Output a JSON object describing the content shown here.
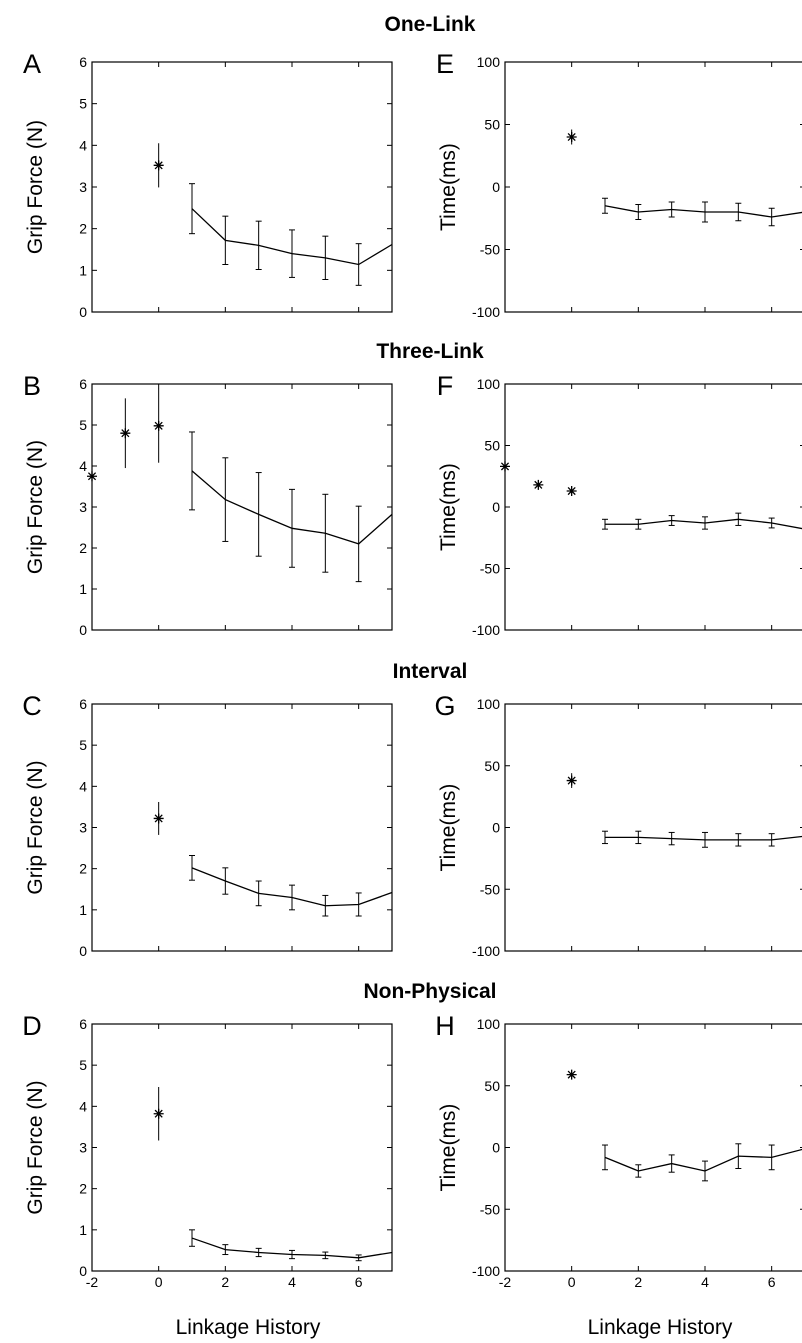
{
  "row_titles": [
    "One-Link",
    "Three-Link",
    "Interval",
    "Non-Physical"
  ],
  "x_axis_label": "Linkage History",
  "chart_data": [
    {
      "panel": "A",
      "type": "line",
      "ylabel": "Grip Force (N)",
      "xlim": [
        -2,
        7
      ],
      "ylim": [
        0,
        6
      ],
      "yticks": [
        0,
        1,
        2,
        3,
        4,
        5,
        6
      ],
      "xticks": [
        -2,
        0,
        2,
        4,
        6
      ],
      "show_xticklabels": false,
      "markers": [
        {
          "x": 0,
          "y": 3.52,
          "err": 0.53
        }
      ],
      "line": {
        "x": [
          1,
          2,
          3,
          4,
          5,
          6,
          7
        ],
        "y": [
          2.48,
          1.72,
          1.6,
          1.4,
          1.3,
          1.14,
          1.62
        ],
        "err": [
          0.6,
          0.58,
          0.58,
          0.57,
          0.52,
          0.5,
          null
        ]
      }
    },
    {
      "panel": "E",
      "type": "line",
      "ylabel": "Time(ms)",
      "xlim": [
        -2,
        7
      ],
      "ylim": [
        -100,
        100
      ],
      "yticks": [
        -100,
        -50,
        0,
        50,
        100
      ],
      "xticks": [
        -2,
        0,
        2,
        4,
        6
      ],
      "show_xticklabels": false,
      "markers": [
        {
          "x": 0,
          "y": 40,
          "err": 6
        }
      ],
      "line": {
        "x": [
          1,
          2,
          3,
          4,
          5,
          6,
          7
        ],
        "y": [
          -15,
          -20,
          -18,
          -20,
          -20,
          -24,
          -20
        ],
        "err": [
          6,
          6,
          6,
          8,
          7,
          7,
          null
        ]
      }
    },
    {
      "panel": "B",
      "type": "line",
      "ylabel": "Grip Force (N)",
      "xlim": [
        -2,
        7
      ],
      "ylim": [
        0,
        6
      ],
      "yticks": [
        0,
        1,
        2,
        3,
        4,
        5,
        6
      ],
      "xticks": [
        -2,
        0,
        2,
        4,
        6
      ],
      "show_xticklabels": false,
      "markers": [
        {
          "x": -2,
          "y": 3.75,
          "err": 0
        },
        {
          "x": -1,
          "y": 4.8,
          "err": 0.85
        },
        {
          "x": 0,
          "y": 4.98,
          "err": 0.9
        }
      ],
      "line": {
        "x": [
          1,
          2,
          3,
          4,
          5,
          6,
          7
        ],
        "y": [
          3.88,
          3.18,
          2.82,
          2.48,
          2.36,
          2.1,
          2.82
        ],
        "err": [
          0.95,
          1.02,
          1.02,
          0.95,
          0.95,
          0.92,
          null
        ]
      }
    },
    {
      "panel": "F",
      "type": "line",
      "ylabel": "Time(ms)",
      "xlim": [
        -2,
        7
      ],
      "ylim": [
        -100,
        100
      ],
      "yticks": [
        -100,
        -50,
        0,
        50,
        100
      ],
      "xticks": [
        -2,
        0,
        2,
        4,
        6
      ],
      "show_xticklabels": false,
      "markers": [
        {
          "x": -2,
          "y": 33,
          "err": 0
        },
        {
          "x": -1,
          "y": 18,
          "err": 0
        },
        {
          "x": 0,
          "y": 13,
          "err": 0
        }
      ],
      "line": {
        "x": [
          1,
          2,
          3,
          4,
          5,
          6,
          7
        ],
        "y": [
          -14,
          -14,
          -11,
          -13,
          -10,
          -13,
          -18
        ],
        "err": [
          4,
          4,
          4,
          5,
          5,
          4,
          null
        ]
      }
    },
    {
      "panel": "C",
      "type": "line",
      "ylabel": "Grip Force (N)",
      "xlim": [
        -2,
        7
      ],
      "ylim": [
        0,
        6
      ],
      "yticks": [
        0,
        1,
        2,
        3,
        4,
        5,
        6
      ],
      "xticks": [
        -2,
        0,
        2,
        4,
        6
      ],
      "show_xticklabels": false,
      "markers": [
        {
          "x": 0,
          "y": 3.22,
          "err": 0.4
        }
      ],
      "line": {
        "x": [
          1,
          2,
          3,
          4,
          5,
          6,
          7
        ],
        "y": [
          2.02,
          1.7,
          1.4,
          1.3,
          1.1,
          1.13,
          1.42
        ],
        "err": [
          0.3,
          0.32,
          0.3,
          0.3,
          0.25,
          0.28,
          null
        ]
      }
    },
    {
      "panel": "G",
      "type": "line",
      "ylabel": "Time(ms)",
      "xlim": [
        -2,
        7
      ],
      "ylim": [
        -100,
        100
      ],
      "yticks": [
        -100,
        -50,
        0,
        50,
        100
      ],
      "xticks": [
        -2,
        0,
        2,
        4,
        6
      ],
      "show_xticklabels": false,
      "markers": [
        {
          "x": 0,
          "y": 38,
          "err": 6
        }
      ],
      "line": {
        "x": [
          1,
          2,
          3,
          4,
          5,
          6,
          7
        ],
        "y": [
          -8,
          -8,
          -9,
          -10,
          -10,
          -10,
          -7
        ],
        "err": [
          5,
          5,
          5,
          6,
          5,
          5,
          null
        ]
      }
    },
    {
      "panel": "D",
      "type": "line",
      "ylabel": "Grip Force (N)",
      "xlim": [
        -2,
        7
      ],
      "ylim": [
        0,
        6
      ],
      "yticks": [
        0,
        1,
        2,
        3,
        4,
        5,
        6
      ],
      "xticks": [
        -2,
        0,
        2,
        4,
        6
      ],
      "show_xticklabels": true,
      "markers": [
        {
          "x": 0,
          "y": 3.82,
          "err": 0.65
        }
      ],
      "line": {
        "x": [
          1,
          2,
          3,
          4,
          5,
          6,
          7
        ],
        "y": [
          0.8,
          0.52,
          0.45,
          0.4,
          0.38,
          0.32,
          0.45
        ],
        "err": [
          0.2,
          0.12,
          0.1,
          0.1,
          0.08,
          0.07,
          null
        ]
      }
    },
    {
      "panel": "H",
      "type": "line",
      "ylabel": "Time(ms)",
      "xlim": [
        -2,
        7
      ],
      "ylim": [
        -100,
        100
      ],
      "yticks": [
        -100,
        -50,
        0,
        50,
        100
      ],
      "xticks": [
        -2,
        0,
        2,
        4,
        6
      ],
      "show_xticklabels": true,
      "markers": [
        {
          "x": 0,
          "y": 59,
          "err": 0
        }
      ],
      "line": {
        "x": [
          1,
          2,
          3,
          4,
          5,
          6,
          7
        ],
        "y": [
          -8,
          -19,
          -13,
          -19,
          -7,
          -8,
          -1
        ],
        "err": [
          10,
          5,
          7,
          8,
          10,
          10,
          null
        ]
      }
    }
  ]
}
